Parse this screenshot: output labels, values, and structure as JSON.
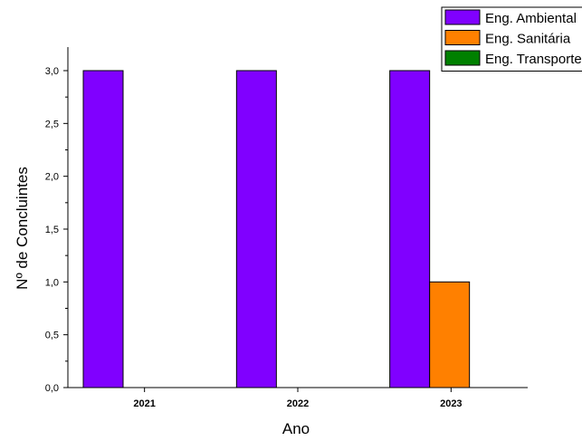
{
  "chart_data": {
    "type": "bar",
    "title": "",
    "xlabel": "Ano",
    "ylabel": "Nº de Concluintes",
    "categories": [
      "2021",
      "2022",
      "2023"
    ],
    "ylim": [
      0,
      3.0
    ],
    "yticks": [
      "0,0",
      "0,5",
      "1,0",
      "1,5",
      "2,0",
      "2,5",
      "3,0"
    ],
    "grid": false,
    "legend_position": "top-right",
    "series": [
      {
        "name": "Eng. Ambiental",
        "color": "#8000FF",
        "values": [
          3,
          3,
          3
        ]
      },
      {
        "name": "Eng. Sanitária",
        "color": "#FF8000",
        "values": [
          0,
          0,
          1
        ]
      },
      {
        "name": "Eng. Transportes",
        "color": "#008000",
        "values": [
          0,
          0,
          0
        ]
      }
    ]
  }
}
